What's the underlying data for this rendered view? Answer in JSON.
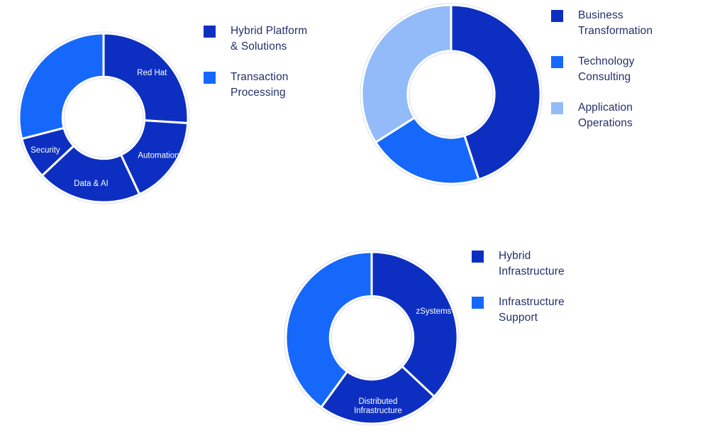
{
  "palette": {
    "dark_blue": "#0d2fc1",
    "bright_blue": "#1668fb",
    "light_blue": "#93bbf9",
    "legend_text": "#24306a",
    "slice_label_text": "#ffffff"
  },
  "chart_data": [
    {
      "type": "pie",
      "donut": true,
      "slices": [
        {
          "label": "Red Hat",
          "value_pct": 26,
          "color": "dark_blue",
          "show_inner_label": true
        },
        {
          "label": "Automation",
          "value_pct": 17,
          "color": "dark_blue",
          "show_inner_label": true
        },
        {
          "label": "Data & AI",
          "value_pct": 20,
          "color": "dark_blue",
          "show_inner_label": true
        },
        {
          "label": "Security",
          "value_pct": 8,
          "color": "dark_blue",
          "show_inner_label": true
        },
        {
          "label": "Transaction Processing",
          "value_pct": 29,
          "color": "bright_blue",
          "show_inner_label": false
        }
      ],
      "legend": [
        {
          "label": "Hybrid Platform & Solutions",
          "color": "dark_blue"
        },
        {
          "label": "Transaction Processing",
          "color": "bright_blue"
        }
      ]
    },
    {
      "type": "pie",
      "donut": true,
      "slices": [
        {
          "label": "Business Transformation",
          "value_pct": 45,
          "color": "dark_blue",
          "show_inner_label": false
        },
        {
          "label": "Technology Consulting",
          "value_pct": 21,
          "color": "bright_blue",
          "show_inner_label": false
        },
        {
          "label": "Application Operations",
          "value_pct": 34,
          "color": "light_blue",
          "show_inner_label": false
        }
      ],
      "legend": [
        {
          "label": "Business Transformation",
          "color": "dark_blue"
        },
        {
          "label": "Technology Consulting",
          "color": "bright_blue"
        },
        {
          "label": "Application Operations",
          "color": "light_blue"
        }
      ]
    },
    {
      "type": "pie",
      "donut": true,
      "slices": [
        {
          "label": "zSystems",
          "value_pct": 37,
          "color": "dark_blue",
          "show_inner_label": true
        },
        {
          "label": "Distributed Infrastructure",
          "value_pct": 23,
          "color": "dark_blue",
          "show_inner_label": true
        },
        {
          "label": "Infrastructure Support",
          "value_pct": 40,
          "color": "bright_blue",
          "show_inner_label": false
        }
      ],
      "legend": [
        {
          "label": "Hybrid Infrastructure",
          "color": "dark_blue"
        },
        {
          "label": "Infrastructure Support",
          "color": "bright_blue"
        }
      ]
    }
  ]
}
